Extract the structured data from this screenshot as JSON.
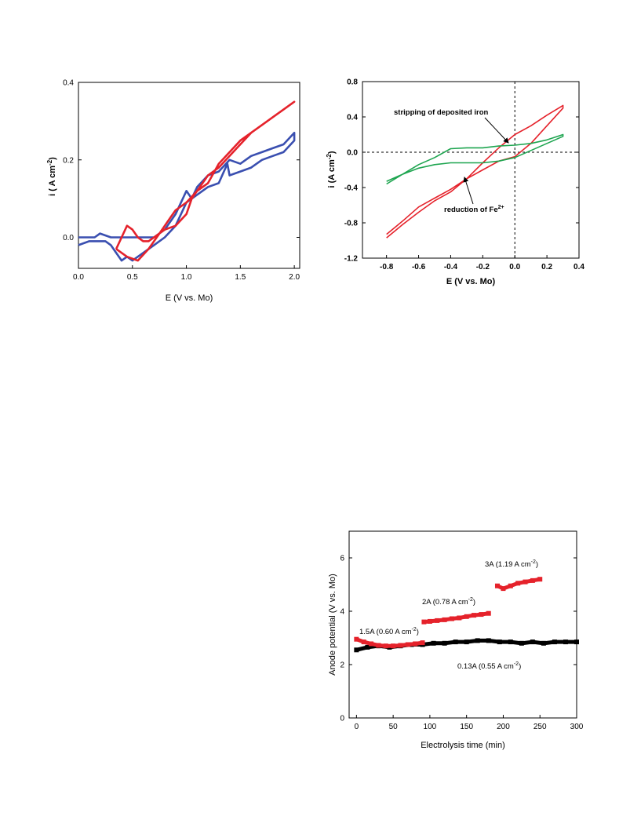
{
  "chart_data": [
    {
      "type": "line",
      "xlabel": "E (V vs. Mo)",
      "ylabel_base": "i ( A cm",
      "ylabel_sup": "-2",
      "ylabel_tail": ")",
      "xlim": [
        0.0,
        2.05
      ],
      "ylim": [
        -0.08,
        0.4
      ],
      "xticks": [
        "0.0",
        "0.5",
        "1.0",
        "1.5",
        "2.0"
      ],
      "yticks": [
        "0.0",
        "0.2",
        "0.4"
      ],
      "series": [
        {
          "color": "#3a4fb0",
          "x": [
            0.0,
            0.15,
            0.2,
            0.3,
            0.35,
            0.4,
            0.5,
            0.6,
            0.7,
            0.8,
            0.9,
            0.95,
            1.0,
            1.05,
            1.1,
            1.2,
            1.3,
            1.4,
            1.5,
            1.6,
            1.7,
            1.8,
            1.9,
            2.0,
            2.0,
            1.9,
            1.8,
            1.7,
            1.6,
            1.5,
            1.4,
            1.38,
            1.3,
            1.2,
            1.1,
            1.0,
            0.95,
            0.9,
            0.8,
            0.7,
            0.6,
            0.5,
            0.45,
            0.4,
            0.35,
            0.3,
            0.25,
            0.2,
            0.1,
            0.0
          ],
          "y": [
            0.0,
            0.0,
            0.01,
            0.0,
            0.0,
            0.0,
            0.0,
            0.0,
            0.0,
            0.02,
            0.06,
            0.09,
            0.12,
            0.1,
            0.13,
            0.16,
            0.17,
            0.2,
            0.19,
            0.21,
            0.22,
            0.23,
            0.24,
            0.27,
            0.25,
            0.22,
            0.21,
            0.2,
            0.18,
            0.17,
            0.16,
            0.19,
            0.14,
            0.13,
            0.11,
            0.09,
            0.06,
            0.03,
            0.0,
            -0.02,
            -0.04,
            -0.06,
            -0.05,
            -0.06,
            -0.04,
            -0.02,
            -0.01,
            -0.01,
            -0.01,
            -0.02
          ]
        },
        {
          "color": "#e5222b",
          "x": [
            0.35,
            0.45,
            0.55,
            0.65,
            0.75,
            0.85,
            0.9,
            0.95,
            1.0,
            1.1,
            1.2,
            1.3,
            1.4,
            1.5,
            1.6,
            1.7,
            1.8,
            1.9,
            2.0,
            1.9,
            1.8,
            1.7,
            1.6,
            1.5,
            1.4,
            1.3,
            1.2,
            1.1,
            1.05,
            1.0,
            0.9,
            0.8,
            0.7,
            0.65,
            0.6,
            0.55,
            0.5,
            0.45,
            0.4,
            0.35
          ],
          "y": [
            -0.03,
            -0.05,
            -0.06,
            -0.03,
            0.01,
            0.05,
            0.07,
            0.08,
            0.09,
            0.12,
            0.16,
            0.18,
            0.21,
            0.24,
            0.27,
            0.29,
            0.31,
            0.33,
            0.35,
            0.33,
            0.31,
            0.29,
            0.27,
            0.25,
            0.22,
            0.19,
            0.14,
            0.12,
            0.1,
            0.06,
            0.03,
            0.02,
            0.0,
            -0.01,
            -0.01,
            0.0,
            0.02,
            0.03,
            0.0,
            -0.03
          ]
        }
      ]
    },
    {
      "type": "line",
      "xlabel": "E (V vs. Mo)",
      "ylabel_base": "i (A cm",
      "ylabel_sup": "-2",
      "ylabel_tail": ")",
      "xlim": [
        -0.95,
        0.4
      ],
      "ylim": [
        -1.2,
        0.8
      ],
      "xticks": [
        "-0.8",
        "-0.6",
        "-0.4",
        "-0.2",
        "0.0",
        "0.2",
        "0.4"
      ],
      "yticks": [
        "-1.2",
        "-0.8",
        "-0.4",
        "0.0",
        "0.4",
        "0.8"
      ],
      "annotations": {
        "stripping": "stripping of deposited iron",
        "reduction_base": "reduction of Fe",
        "reduction_sup": "2+"
      },
      "series": [
        {
          "color": "#e5222b",
          "x": [
            -0.8,
            -0.7,
            -0.6,
            -0.5,
            -0.4,
            -0.3,
            -0.2,
            -0.1,
            0.0,
            0.1,
            0.2,
            0.3,
            0.3,
            0.2,
            0.1,
            0.0,
            -0.1,
            -0.2,
            -0.3,
            -0.4,
            -0.5,
            -0.6,
            -0.7,
            -0.8
          ],
          "y": [
            -0.97,
            -0.82,
            -0.68,
            -0.55,
            -0.45,
            -0.3,
            -0.12,
            0.05,
            0.2,
            0.3,
            0.42,
            0.53,
            0.5,
            0.3,
            0.1,
            -0.05,
            -0.1,
            -0.2,
            -0.3,
            -0.42,
            -0.52,
            -0.62,
            -0.78,
            -0.93
          ]
        },
        {
          "color": "#1ea550",
          "x": [
            -0.8,
            -0.7,
            -0.6,
            -0.5,
            -0.4,
            -0.3,
            -0.2,
            -0.1,
            0.0,
            0.1,
            0.2,
            0.3,
            0.3,
            0.2,
            0.1,
            0.0,
            -0.1,
            -0.2,
            -0.3,
            -0.4,
            -0.5,
            -0.6,
            -0.7,
            -0.8
          ],
          "y": [
            -0.36,
            -0.25,
            -0.14,
            -0.06,
            0.04,
            0.05,
            0.05,
            0.07,
            0.08,
            0.1,
            0.14,
            0.2,
            0.18,
            0.1,
            0.02,
            -0.06,
            -0.1,
            -0.12,
            -0.12,
            -0.12,
            -0.14,
            -0.18,
            -0.25,
            -0.33
          ]
        }
      ]
    },
    {
      "type": "scatter",
      "xlabel": "Electrolysis time (min)",
      "ylabel": "Anode potential (V vs. Mo)",
      "xlim": [
        -10,
        300
      ],
      "ylim": [
        0,
        7
      ],
      "xticks": [
        "0",
        "50",
        "100",
        "150",
        "200",
        "250",
        "300"
      ],
      "yticks": [
        "0",
        "2",
        "4",
        "6"
      ],
      "labels": {
        "a": "1.5A (0.60 A cm",
        "b": "2A (0.78 A cm",
        "c": "3A (1.19 A cm",
        "d": "0.13A (0.55 A cm",
        "sup": "-2",
        "tail": ")"
      },
      "series": [
        {
          "color": "#000000",
          "x": [
            0,
            15,
            30,
            45,
            60,
            75,
            90,
            105,
            120,
            135,
            150,
            165,
            180,
            195,
            210,
            225,
            240,
            255,
            270,
            285,
            300
          ],
          "y": [
            2.55,
            2.65,
            2.7,
            2.65,
            2.7,
            2.75,
            2.75,
            2.8,
            2.8,
            2.85,
            2.85,
            2.9,
            2.9,
            2.85,
            2.85,
            2.8,
            2.85,
            2.8,
            2.85,
            2.85,
            2.85
          ]
        },
        {
          "color": "#e5222b",
          "x": [
            0,
            10,
            20,
            30,
            40,
            50,
            60,
            70,
            80,
            90
          ],
          "y": [
            2.95,
            2.85,
            2.78,
            2.72,
            2.7,
            2.7,
            2.72,
            2.75,
            2.78,
            2.82
          ]
        },
        {
          "color": "#e5222b",
          "x": [
            92,
            100,
            110,
            120,
            130,
            140,
            150,
            160,
            170,
            180
          ],
          "y": [
            3.6,
            3.62,
            3.65,
            3.68,
            3.72,
            3.75,
            3.8,
            3.85,
            3.88,
            3.92
          ]
        },
        {
          "color": "#e5222b",
          "x": [
            192,
            200,
            210,
            220,
            230,
            240,
            250
          ],
          "y": [
            4.95,
            4.85,
            4.95,
            5.05,
            5.1,
            5.15,
            5.2
          ]
        }
      ]
    }
  ]
}
